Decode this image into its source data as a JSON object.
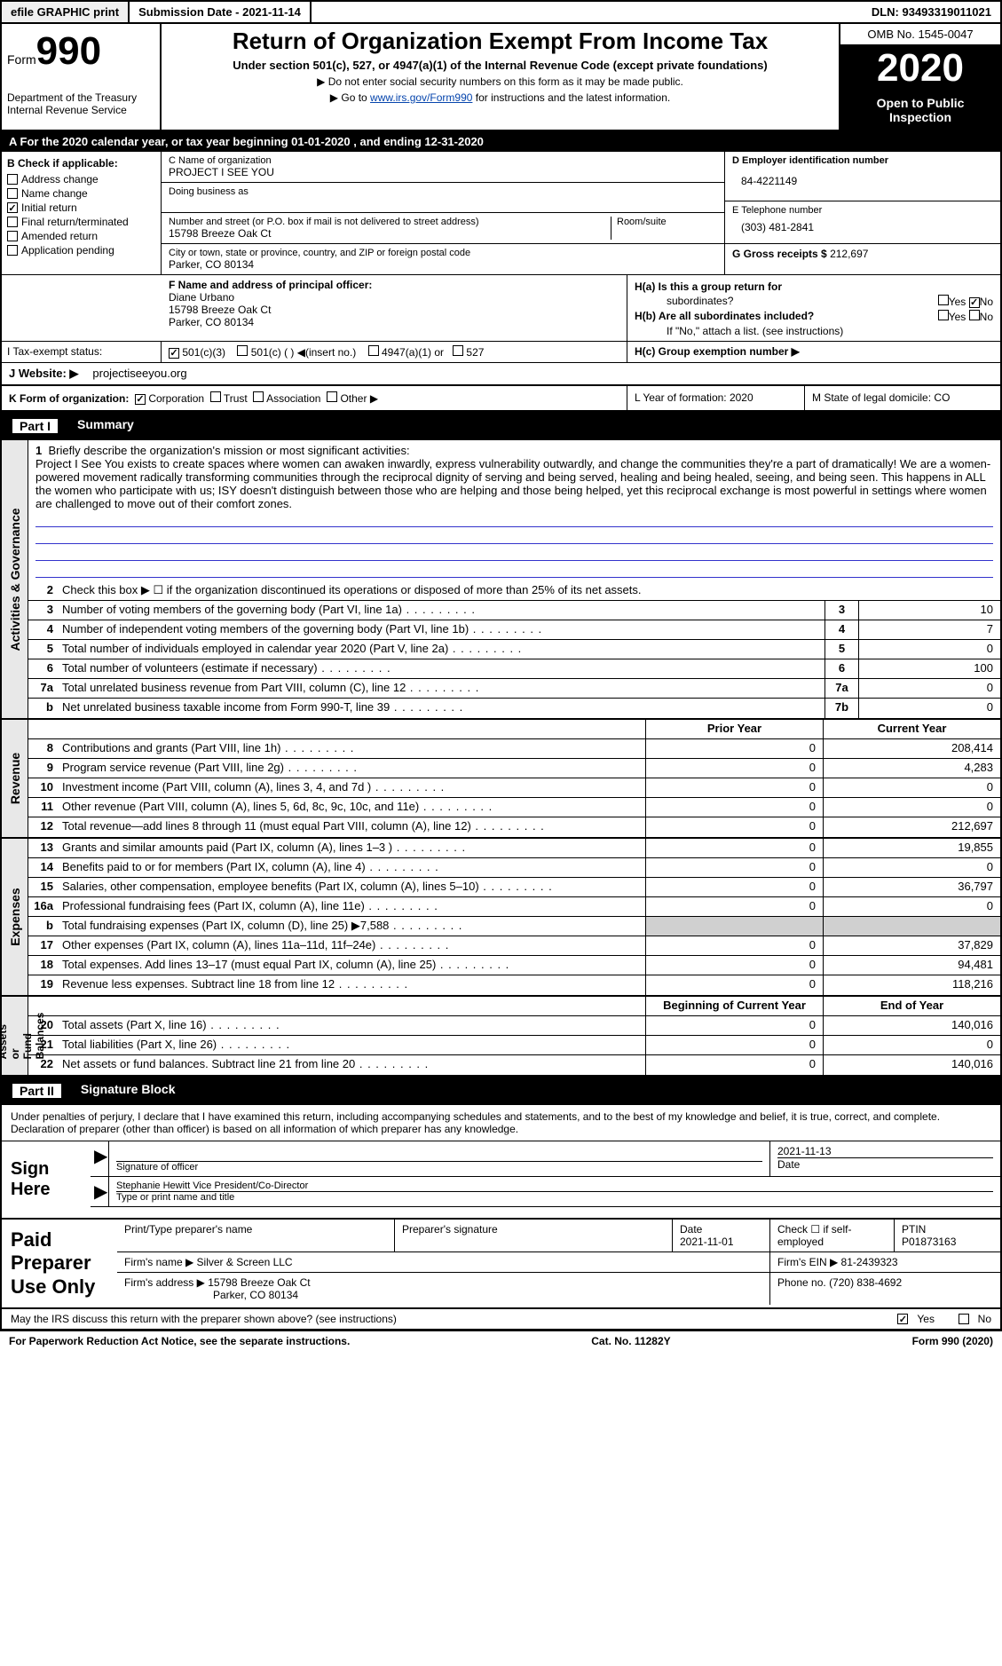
{
  "topbar": {
    "efile": "efile GRAPHIC print",
    "submission": "Submission Date - 2021-11-14",
    "dln": "DLN: 93493319011021"
  },
  "header": {
    "form_label": "Form",
    "form_number": "990",
    "dept": "Department of the Treasury\nInternal Revenue Service",
    "title": "Return of Organization Exempt From Income Tax",
    "subtitle": "Under section 501(c), 527, or 4947(a)(1) of the Internal Revenue Code (except private foundations)",
    "note1": "▶ Do not enter social security numbers on this form as it may be made public.",
    "note2_pre": "▶ Go to ",
    "note2_link": "www.irs.gov/Form990",
    "note2_post": " for instructions and the latest information.",
    "omb": "OMB No. 1545-0047",
    "year": "2020",
    "open": "Open to Public Inspection"
  },
  "period": "A For the 2020 calendar year, or tax year beginning 01-01-2020    , and ending 12-31-2020",
  "sectionB": {
    "label": "B Check if applicable:",
    "items": [
      {
        "checked": false,
        "label": "Address change"
      },
      {
        "checked": false,
        "label": "Name change"
      },
      {
        "checked": true,
        "label": "Initial return"
      },
      {
        "checked": false,
        "label": "Final return/terminated"
      },
      {
        "checked": false,
        "label": "Amended return"
      },
      {
        "checked": false,
        "label": "Application pending"
      }
    ]
  },
  "sectionC": {
    "name_hint": "C Name of organization",
    "name": "PROJECT I SEE YOU",
    "dba_hint": "Doing business as",
    "dba": "",
    "street_hint": "Number and street (or P.O. box if mail is not delivered to street address)",
    "street": "15798 Breeze Oak Ct",
    "room_hint": "Room/suite",
    "city_hint": "City or town, state or province, country, and ZIP or foreign postal code",
    "city": "Parker, CO  80134"
  },
  "sectionD": {
    "ein_hint": "D Employer identification number",
    "ein": "84-4221149",
    "phone_hint": "E Telephone number",
    "phone": "(303) 481-2841",
    "gross_hint": "G Gross receipts $",
    "gross": "212,697"
  },
  "sectionF": {
    "hint": "F  Name and address of principal officer:",
    "name": "Diane Urbano",
    "addr1": "15798 Breeze Oak Ct",
    "addr2": "Parker, CO  80134"
  },
  "sectionH": {
    "a": "H(a)  Is this a group return for",
    "a2": "subordinates?",
    "b": "H(b)  Are all subordinates included?",
    "bnote": "If \"No,\" attach a list. (see instructions)",
    "c": "H(c)  Group exemption number ▶",
    "yes": "Yes",
    "no": "No",
    "ha_no_checked": true
  },
  "taxexempt": {
    "label": "I  Tax-exempt status:",
    "c3_checked": true,
    "c3": "501(c)(3)",
    "c_other": "501(c) (  ) ◀(insert no.)",
    "a1": "4947(a)(1) or",
    "s527": "527"
  },
  "website": {
    "label": "J Website: ▶",
    "value": "projectiseeyou.org"
  },
  "rowK": {
    "label": "K Form of organization:",
    "corp": "Corporation",
    "corp_checked": true,
    "trust": "Trust",
    "assoc": "Association",
    "other": "Other ▶"
  },
  "rowLM": {
    "l": "L Year of formation: 2020",
    "m": "M State of legal domicile: CO"
  },
  "part1": {
    "num": "Part I",
    "title": "Summary"
  },
  "mission": {
    "num": "1",
    "label": "Briefly describe the organization's mission or most significant activities:",
    "text": "Project I See You exists to create spaces where women can awaken inwardly, express vulnerability outwardly, and change the communities they're a part of dramatically! We are a women-powered movement radically transforming communities through the reciprocal dignity of serving and being served, healing and being healed, seeing, and being seen. This happens in ALL the women who participate with us; ISY doesn't distinguish between those who are helping and those being helped, yet this reciprocal exchange is most powerful in settings where women are challenged to move out of their comfort zones."
  },
  "line2": "Check this box ▶ ☐  if the organization discontinued its operations or disposed of more than 25% of its net assets.",
  "governance_rows": [
    {
      "n": "3",
      "d": "Number of voting members of the governing body (Part VI, line 1a)",
      "c": "3",
      "v": "10"
    },
    {
      "n": "4",
      "d": "Number of independent voting members of the governing body (Part VI, line 1b)",
      "c": "4",
      "v": "7"
    },
    {
      "n": "5",
      "d": "Total number of individuals employed in calendar year 2020 (Part V, line 2a)",
      "c": "5",
      "v": "0"
    },
    {
      "n": "6",
      "d": "Total number of volunteers (estimate if necessary)",
      "c": "6",
      "v": "100"
    },
    {
      "n": "7a",
      "d": "Total unrelated business revenue from Part VIII, column (C), line 12",
      "c": "7a",
      "v": "0"
    },
    {
      "n": "b",
      "d": "Net unrelated business taxable income from Form 990-T, line 39",
      "c": "7b",
      "v": "0"
    }
  ],
  "revenue_hdr": {
    "py": "Prior Year",
    "cy": "Current Year"
  },
  "revenue_rows": [
    {
      "n": "8",
      "d": "Contributions and grants (Part VIII, line 1h)",
      "py": "0",
      "cy": "208,414"
    },
    {
      "n": "9",
      "d": "Program service revenue (Part VIII, line 2g)",
      "py": "0",
      "cy": "4,283"
    },
    {
      "n": "10",
      "d": "Investment income (Part VIII, column (A), lines 3, 4, and 7d )",
      "py": "0",
      "cy": "0"
    },
    {
      "n": "11",
      "d": "Other revenue (Part VIII, column (A), lines 5, 6d, 8c, 9c, 10c, and 11e)",
      "py": "0",
      "cy": "0"
    },
    {
      "n": "12",
      "d": "Total revenue—add lines 8 through 11 (must equal Part VIII, column (A), line 12)",
      "py": "0",
      "cy": "212,697"
    }
  ],
  "expense_rows": [
    {
      "n": "13",
      "d": "Grants and similar amounts paid (Part IX, column (A), lines 1–3 )",
      "py": "0",
      "cy": "19,855"
    },
    {
      "n": "14",
      "d": "Benefits paid to or for members (Part IX, column (A), line 4)",
      "py": "0",
      "cy": "0"
    },
    {
      "n": "15",
      "d": "Salaries, other compensation, employee benefits (Part IX, column (A), lines 5–10)",
      "py": "0",
      "cy": "36,797"
    },
    {
      "n": "16a",
      "d": "Professional fundraising fees (Part IX, column (A), line 11e)",
      "py": "0",
      "cy": "0"
    },
    {
      "n": "b",
      "d": "Total fundraising expenses (Part IX, column (D), line 25) ▶7,588",
      "py": "",
      "cy": "",
      "shade": true
    },
    {
      "n": "17",
      "d": "Other expenses (Part IX, column (A), lines 11a–11d, 11f–24e)",
      "py": "0",
      "cy": "37,829"
    },
    {
      "n": "18",
      "d": "Total expenses. Add lines 13–17 (must equal Part IX, column (A), line 25)",
      "py": "0",
      "cy": "94,481"
    },
    {
      "n": "19",
      "d": "Revenue less expenses. Subtract line 18 from line 12",
      "py": "0",
      "cy": "118,216"
    }
  ],
  "netassets_hdr": {
    "py": "Beginning of Current Year",
    "cy": "End of Year"
  },
  "netassets_rows": [
    {
      "n": "20",
      "d": "Total assets (Part X, line 16)",
      "py": "0",
      "cy": "140,016"
    },
    {
      "n": "21",
      "d": "Total liabilities (Part X, line 26)",
      "py": "0",
      "cy": "0"
    },
    {
      "n": "22",
      "d": "Net assets or fund balances. Subtract line 21 from line 20",
      "py": "0",
      "cy": "140,016"
    }
  ],
  "side_labels": {
    "gov": "Activities & Governance",
    "rev": "Revenue",
    "exp": "Expenses",
    "net": "Net Assets or\nFund Balances"
  },
  "part2": {
    "num": "Part II",
    "title": "Signature Block"
  },
  "sig_intro": "Under penalties of perjury, I declare that I have examined this return, including accompanying schedules and statements, and to the best of my knowledge and belief, it is true, correct, and complete. Declaration of preparer (other than officer) is based on all information of which preparer has any knowledge.",
  "sign": {
    "here": "Sign Here",
    "sig_label": "Signature of officer",
    "date": "2021-11-13",
    "date_label": "Date",
    "name": "Stephanie Hewitt  Vice President/Co-Director",
    "name_label": "Type or print name and title"
  },
  "prep": {
    "title": "Paid Preparer Use Only",
    "h1": "Print/Type preparer's name",
    "h2": "Preparer's signature",
    "h3": "Date",
    "h4": "Check ☐ if self-employed",
    "h5": "PTIN",
    "date": "2021-11-01",
    "ptin": "P01873163",
    "firm_label": "Firm's name   ▶",
    "firm": "Silver & Screen LLC",
    "ein_label": "Firm's EIN ▶",
    "ein": "81-2439323",
    "addr_label": "Firm's address ▶",
    "addr": "15798 Breeze Oak Ct",
    "addr2": "Parker, CO  80134",
    "phone_label": "Phone no.",
    "phone": "(720) 838-4692"
  },
  "foot": {
    "q": "May the IRS discuss this return with the preparer shown above? (see instructions)",
    "yes": "Yes",
    "no": "No",
    "yes_checked": true,
    "pra": "For Paperwork Reduction Act Notice, see the separate instructions.",
    "cat": "Cat. No. 11282Y",
    "form": "Form 990 (2020)"
  }
}
